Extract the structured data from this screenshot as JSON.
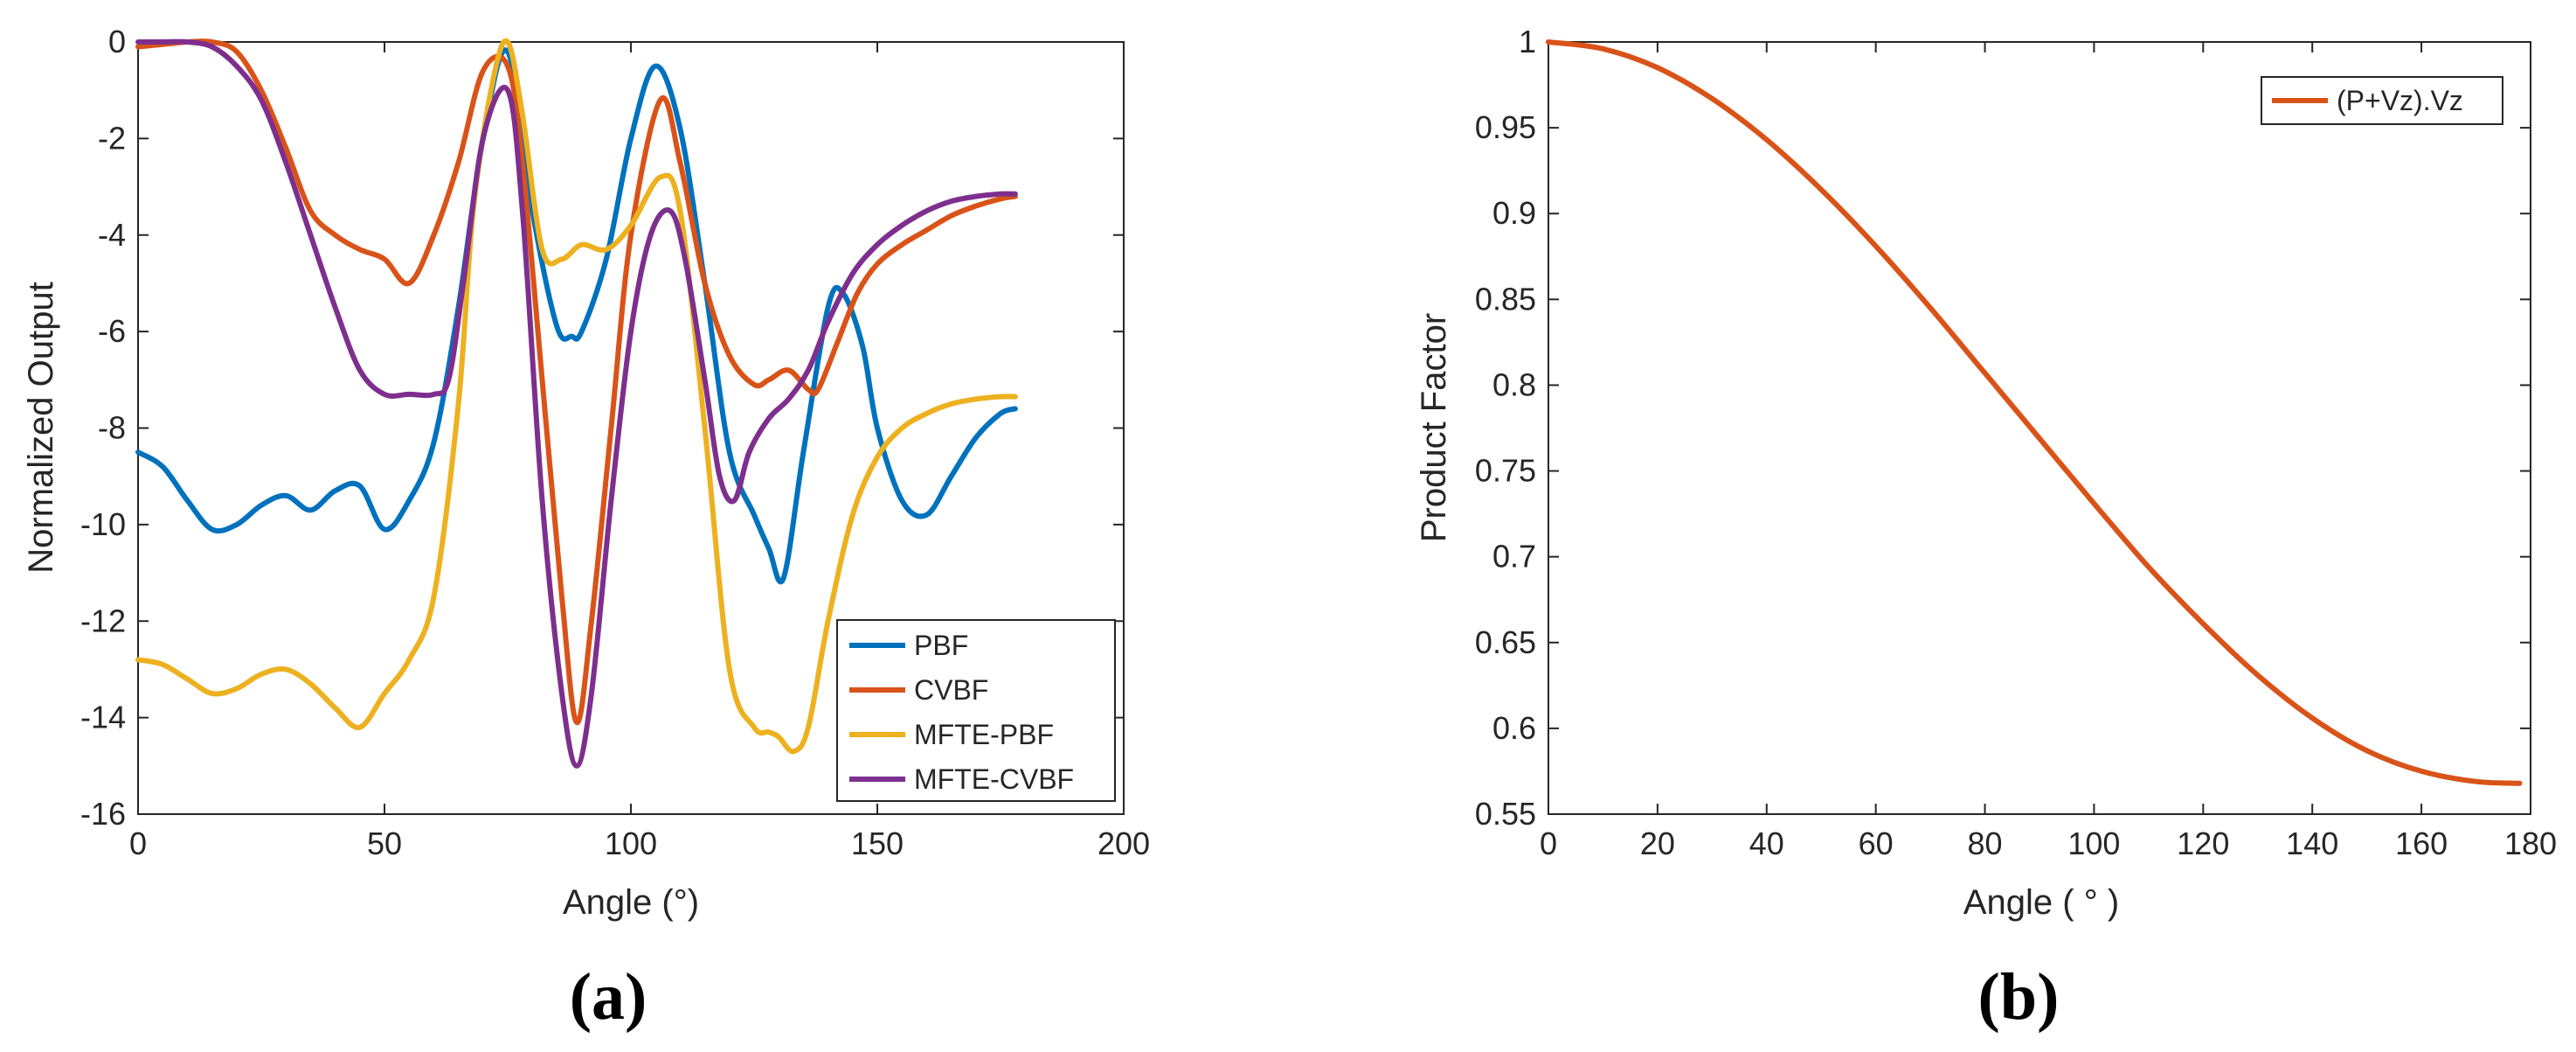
{
  "chart_data": [
    {
      "type": "line",
      "panel_label": "(a)",
      "title": "",
      "xlabel": "Angle (°)",
      "ylabel": "Normalized Output",
      "xlim": [
        0,
        200
      ],
      "ylim": [
        -16,
        0
      ],
      "xticks": [
        0,
        50,
        100,
        150,
        200
      ],
      "yticks": [
        0,
        -2,
        -4,
        -6,
        -8,
        -10,
        -12,
        -14,
        -16
      ],
      "grid": false,
      "legend_position": "bottom-right",
      "series": [
        {
          "name": "PBF",
          "color": "#0072BD",
          "x": [
            0,
            5,
            10,
            15,
            20,
            25,
            30,
            35,
            40,
            45,
            50,
            55,
            60,
            65,
            70,
            75,
            80,
            85,
            88,
            90,
            95,
            100,
            105,
            110,
            115,
            120,
            125,
            128,
            131,
            135,
            140,
            143,
            147,
            150,
            155,
            160,
            165,
            170,
            175,
            178
          ],
          "y": [
            -8.5,
            -8.8,
            -9.5,
            -10.1,
            -10.0,
            -9.6,
            -9.4,
            -9.7,
            -9.3,
            -9.2,
            -10.1,
            -9.5,
            -8.3,
            -5.5,
            -2.0,
            -0.2,
            -3.5,
            -5.9,
            -6.1,
            -6.0,
            -4.5,
            -2.0,
            -0.5,
            -1.8,
            -5.0,
            -8.5,
            -9.8,
            -10.5,
            -11.1,
            -8.5,
            -5.5,
            -5.2,
            -6.3,
            -8.0,
            -9.5,
            -9.8,
            -9.0,
            -8.2,
            -7.7,
            -7.6
          ]
        },
        {
          "name": "CVBF",
          "color": "#D95319",
          "x": [
            0,
            5,
            10,
            15,
            20,
            25,
            30,
            35,
            40,
            45,
            50,
            55,
            60,
            65,
            70,
            75,
            78,
            82,
            86,
            89,
            92,
            96,
            100,
            106,
            110,
            115,
            120,
            125,
            128,
            132,
            136,
            138,
            142,
            146,
            150,
            155,
            160,
            165,
            170,
            175,
            178
          ],
          "y": [
            -0.1,
            -0.05,
            0,
            0,
            -0.2,
            -1.0,
            -2.2,
            -3.5,
            -4.0,
            -4.3,
            -4.5,
            -5.0,
            -4.0,
            -2.5,
            -0.6,
            -0.5,
            -2.5,
            -7.0,
            -11.5,
            -14.1,
            -12.0,
            -8.0,
            -4.0,
            -1.2,
            -2.5,
            -5.0,
            -6.5,
            -7.1,
            -7.0,
            -6.8,
            -7.2,
            -7.2,
            -6.2,
            -5.2,
            -4.6,
            -4.2,
            -3.9,
            -3.6,
            -3.4,
            -3.25,
            -3.2
          ]
        },
        {
          "name": "MFTE-PBF",
          "color": "#EDB120",
          "x": [
            0,
            5,
            10,
            15,
            20,
            25,
            30,
            35,
            40,
            45,
            50,
            55,
            60,
            65,
            68,
            72,
            75,
            78,
            82,
            86,
            90,
            95,
            100,
            106,
            110,
            115,
            120,
            125,
            128,
            130,
            133,
            136,
            140,
            145,
            150,
            155,
            160,
            165,
            170,
            175,
            178
          ],
          "y": [
            -12.8,
            -12.9,
            -13.2,
            -13.5,
            -13.4,
            -13.1,
            -13.0,
            -13.3,
            -13.8,
            -14.2,
            -13.5,
            -12.8,
            -11.5,
            -7.5,
            -3.5,
            -0.8,
            0.0,
            -1.5,
            -4.3,
            -4.5,
            -4.2,
            -4.3,
            -3.8,
            -2.8,
            -3.5,
            -8.0,
            -13.0,
            -14.2,
            -14.3,
            -14.4,
            -14.7,
            -14.2,
            -12.0,
            -9.8,
            -8.6,
            -8.0,
            -7.7,
            -7.5,
            -7.4,
            -7.35,
            -7.35
          ]
        },
        {
          "name": "MFTE-CVBF",
          "color": "#7E2F8E",
          "x": [
            0,
            5,
            10,
            15,
            20,
            25,
            30,
            35,
            40,
            45,
            50,
            55,
            60,
            63,
            66,
            70,
            75,
            78,
            82,
            86,
            89,
            92,
            96,
            100,
            104,
            108,
            111,
            115,
            118,
            121,
            124,
            128,
            132,
            136,
            140,
            145,
            150,
            155,
            160,
            165,
            170,
            175,
            178
          ],
          "y": [
            0,
            0,
            0,
            -0.1,
            -0.5,
            -1.2,
            -2.5,
            -4.0,
            -5.5,
            -6.8,
            -7.3,
            -7.3,
            -7.3,
            -7.0,
            -5.0,
            -2.0,
            -1.0,
            -3.5,
            -9.5,
            -13.5,
            -15.0,
            -13.5,
            -9.5,
            -6.0,
            -4.0,
            -3.5,
            -4.5,
            -7.0,
            -9.0,
            -9.5,
            -8.5,
            -7.8,
            -7.4,
            -6.8,
            -5.8,
            -4.8,
            -4.2,
            -3.8,
            -3.5,
            -3.3,
            -3.2,
            -3.15,
            -3.15
          ]
        }
      ]
    },
    {
      "type": "line",
      "panel_label": "(b)",
      "title": "",
      "xlabel": "Angle ( ° )",
      "ylabel": "Product Factor",
      "xlim": [
        0,
        180
      ],
      "ylim": [
        0.55,
        1
      ],
      "xticks": [
        0,
        20,
        40,
        60,
        80,
        100,
        120,
        140,
        160,
        180
      ],
      "yticks": [
        1,
        0.95,
        0.9,
        0.85,
        0.8,
        0.75,
        0.7,
        0.65,
        0.6,
        0.55
      ],
      "grid": false,
      "legend_position": "top-right",
      "series": [
        {
          "name": "(P+Vz).Vz",
          "color": "#D95319",
          "x": [
            0,
            10,
            20,
            30,
            40,
            50,
            60,
            70,
            80,
            90,
            100,
            110,
            120,
            130,
            140,
            150,
            160,
            170,
            178
          ],
          "y": [
            1.0,
            0.996,
            0.985,
            0.967,
            0.943,
            0.914,
            0.881,
            0.845,
            0.807,
            0.769,
            0.731,
            0.694,
            0.661,
            0.631,
            0.606,
            0.587,
            0.575,
            0.569,
            0.568
          ]
        }
      ]
    }
  ]
}
